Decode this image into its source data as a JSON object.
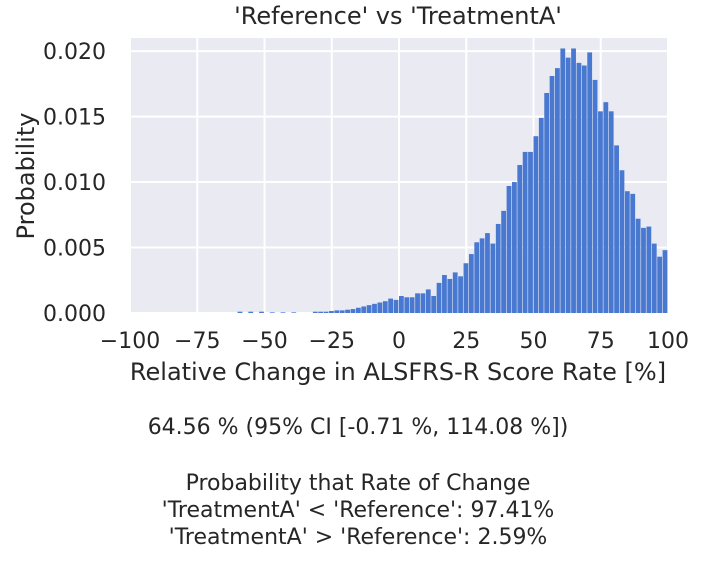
{
  "chart_data": {
    "type": "bar",
    "title": "'Reference' vs 'TreatmentA'",
    "xlabel": "Relative Change in ALSFRS-R Score Rate [%]",
    "ylabel": "Probability",
    "xlim": [
      -100,
      100
    ],
    "ylim": [
      0,
      0.021
    ],
    "xticks": [
      "−100",
      "−75",
      "−50",
      "−25",
      "0",
      "25",
      "50",
      "75",
      "100"
    ],
    "xtick_values": [
      -100,
      -75,
      -50,
      -25,
      0,
      25,
      50,
      75,
      100
    ],
    "yticks": [
      "0.000",
      "0.005",
      "0.010",
      "0.015",
      "0.020"
    ],
    "ytick_values": [
      0,
      0.005,
      0.01,
      0.015,
      0.02
    ],
    "grid": true,
    "background_color": "#eaeaf2",
    "bar_color": "#4878d0",
    "bin_width": 2,
    "bin_left_edges": [
      -60,
      -56,
      -52,
      -48,
      -44,
      -40,
      -32,
      -30,
      -28,
      -26,
      -24,
      -22,
      -20,
      -18,
      -16,
      -14,
      -12,
      -10,
      -8,
      -6,
      -4,
      -2,
      0,
      2,
      4,
      6,
      8,
      10,
      12,
      14,
      16,
      18,
      20,
      22,
      24,
      26,
      28,
      30,
      32,
      34,
      36,
      38,
      40,
      42,
      44,
      46,
      48,
      50,
      52,
      54,
      56,
      58,
      60,
      62,
      64,
      66,
      68,
      70,
      72,
      74,
      76,
      78,
      80,
      82,
      84,
      86,
      88,
      90,
      92,
      94,
      96,
      98
    ],
    "values": [
      0.0001,
      0.0001,
      0.0001,
      5e-05,
      5e-05,
      5e-05,
      0.0001,
      0.0001,
      0.0001,
      0.00015,
      0.0002,
      0.0002,
      0.00025,
      0.0003,
      0.0004,
      0.0005,
      0.0006,
      0.0007,
      0.0008,
      0.0009,
      0.0011,
      0.001,
      0.0013,
      0.0012,
      0.0012,
      0.0015,
      0.0015,
      0.0018,
      0.0013,
      0.0023,
      0.0029,
      0.0026,
      0.0031,
      0.0028,
      0.0038,
      0.0045,
      0.0054,
      0.0057,
      0.0061,
      0.0053,
      0.0068,
      0.0078,
      0.0097,
      0.01,
      0.0113,
      0.0123,
      0.0123,
      0.0135,
      0.0149,
      0.0168,
      0.0181,
      0.0187,
      0.0202,
      0.0195,
      0.0202,
      0.0191,
      0.0189,
      0.0199,
      0.0178,
      0.0154,
      0.0161,
      0.0154,
      0.0128,
      0.0109,
      0.0093,
      0.0091,
      0.0072,
      0.0065,
      0.0066,
      0.0053,
      0.0043,
      0.0048
    ]
  },
  "summary": {
    "median_ci": "64.56 % (95% CI [-0.71 %, 114.08 %])",
    "prob_header": "Probability that Rate of Change",
    "prob_less": "'TreatmentA' < 'Reference': 97.41%",
    "prob_greater": "'TreatmentA' > 'Reference': 2.59%"
  }
}
